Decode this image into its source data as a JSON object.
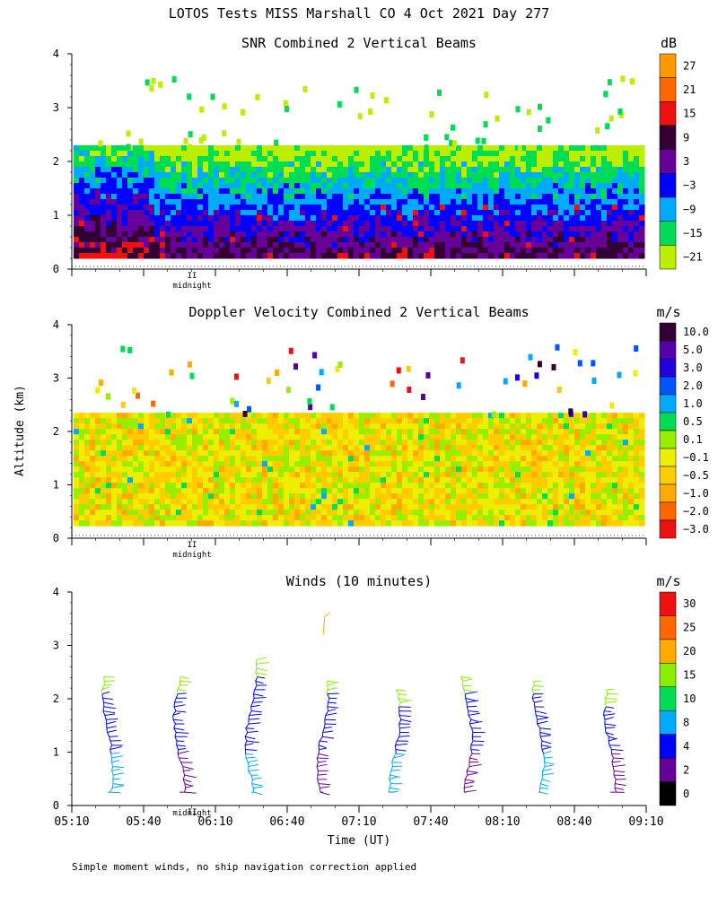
{
  "figure": {
    "title": "LOTOS Tests MISS Marshall CO   4 Oct 2021 Day 277",
    "ylabel": "Altitude (km)",
    "xlabel": "Time (UT)",
    "footnote": "Simple moment winds, no ship navigation correction applied",
    "midnight_label": "midnight"
  },
  "chart_data": [
    {
      "type": "heatmap",
      "title": "SNR Combined 2 Vertical Beams",
      "ylim": [
        0,
        4
      ],
      "yticks": [
        0,
        1,
        2,
        3,
        4
      ],
      "xlim": [
        "05:10",
        "09:10"
      ],
      "colorbar": {
        "unit": "dB",
        "labels": [
          "27",
          "21",
          "15",
          "9",
          "3",
          "−3",
          "−9",
          "−15",
          "−21"
        ],
        "colors": [
          "#ff9900",
          "#ff6600",
          "#ee1111",
          "#330033",
          "#660099",
          "#0000ff",
          "#00aaff",
          "#00dd55",
          "#bbee00"
        ]
      },
      "data_range_km": [
        0.25,
        2.3
      ]
    },
    {
      "type": "heatmap",
      "title": "Doppler Velocity Combined 2 Vertical Beams",
      "ylim": [
        0,
        4
      ],
      "yticks": [
        0,
        1,
        2,
        3,
        4
      ],
      "xlim": [
        "05:10",
        "09:10"
      ],
      "colorbar": {
        "unit": "m/s",
        "labels": [
          "10.0",
          "5.0",
          "3.0",
          "2.0",
          "1.0",
          "0.5",
          "0.1",
          "−0.1",
          "−0.5",
          "−1.0",
          "−2.0",
          "−3.0"
        ],
        "colors": [
          "#330033",
          "#5500aa",
          "#2200dd",
          "#0055ff",
          "#00aaff",
          "#00dd55",
          "#99ee00",
          "#eeee00",
          "#ffcc00",
          "#ffaa00",
          "#ff6600",
          "#ee1111"
        ]
      },
      "data_range_km": [
        0.25,
        2.35
      ]
    },
    {
      "type": "scatter",
      "title": "Winds (10 minutes)",
      "ylim": [
        0,
        4
      ],
      "yticks": [
        0,
        1,
        2,
        3,
        4
      ],
      "xlim": [
        "05:10",
        "09:10"
      ],
      "xticks": [
        "05:10",
        "05:40",
        "06:10",
        "06:40",
        "07:10",
        "07:40",
        "08:10",
        "08:40",
        "09:10"
      ],
      "colorbar": {
        "unit": "m/s",
        "labels": [
          "30",
          "25",
          "20",
          "15",
          "10",
          "8",
          "4",
          "2",
          "0"
        ],
        "colors": [
          "#ee1111",
          "#ff6600",
          "#ffaa00",
          "#88ee00",
          "#00dd55",
          "#00aaff",
          "#0000ff",
          "#660099",
          "#000000"
        ]
      },
      "profile_times": [
        "05:25",
        "05:55",
        "06:25",
        "06:55",
        "07:25",
        "07:55",
        "08:25",
        "08:55"
      ],
      "profile_top_km": [
        2.45,
        2.45,
        2.75,
        2.4,
        2.2,
        2.45,
        2.4,
        2.2
      ]
    }
  ]
}
